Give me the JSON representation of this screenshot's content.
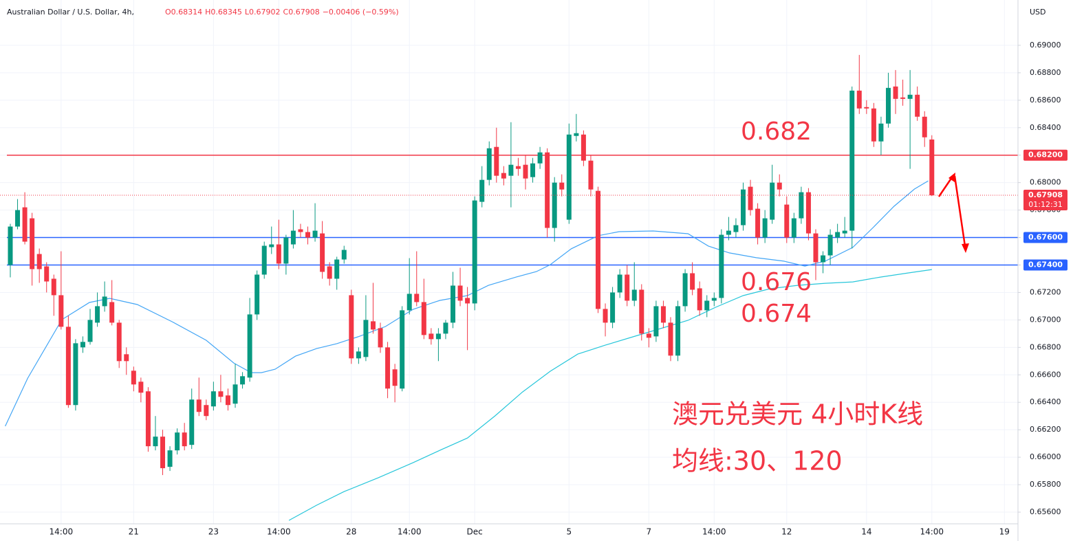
{
  "chart_data": {
    "type": "candlestick",
    "title": "Australian Dollar / U.S. Dollar, 4h,",
    "ohlc": [
      "O0.68314",
      "H0.68345",
      "L0.67902",
      "C0.67908",
      "−0.00406 (−0.59%)"
    ],
    "currency": "USD",
    "up_color": "#089981",
    "down_color": "#f23645",
    "grid": true,
    "candles": [
      [
        0.674,
        0.677,
        0.6731,
        0.6768
      ],
      [
        0.6768,
        0.6788,
        0.6766,
        0.678
      ],
      [
        0.6782,
        0.6793,
        0.6755,
        0.6757
      ],
      [
        0.6774,
        0.6778,
        0.6725,
        0.6737
      ],
      [
        0.6748,
        0.6752,
        0.6727,
        0.6737
      ],
      [
        0.6739,
        0.6742,
        0.672,
        0.6728
      ],
      [
        0.673,
        0.6733,
        0.6703,
        0.6718
      ],
      [
        0.6718,
        0.675,
        0.6693,
        0.6695
      ],
      [
        0.6695,
        0.6703,
        0.6636,
        0.6638
      ],
      [
        0.6638,
        0.6686,
        0.6634,
        0.6683
      ],
      [
        0.668,
        0.6688,
        0.6676,
        0.6684
      ],
      [
        0.6684,
        0.6708,
        0.6682,
        0.67
      ],
      [
        0.6698,
        0.672,
        0.6695,
        0.671
      ],
      [
        0.671,
        0.6728,
        0.6706,
        0.6717
      ],
      [
        0.6713,
        0.6729,
        0.6696,
        0.6698
      ],
      [
        0.6698,
        0.67,
        0.6665,
        0.667
      ],
      [
        0.6675,
        0.668,
        0.666,
        0.667
      ],
      [
        0.6663,
        0.6666,
        0.6648,
        0.6653
      ],
      [
        0.6655,
        0.6658,
        0.664,
        0.6647
      ],
      [
        0.6648,
        0.6651,
        0.6604,
        0.6608
      ],
      [
        0.6608,
        0.663,
        0.6605,
        0.6615
      ],
      [
        0.6615,
        0.662,
        0.6587,
        0.6592
      ],
      [
        0.6593,
        0.6608,
        0.659,
        0.6605
      ],
      [
        0.6605,
        0.6621,
        0.6602,
        0.6618
      ],
      [
        0.6618,
        0.6625,
        0.6605,
        0.6608
      ],
      [
        0.6609,
        0.665,
        0.6606,
        0.6642
      ],
      [
        0.6642,
        0.6658,
        0.663,
        0.6633
      ],
      [
        0.6638,
        0.6642,
        0.6627,
        0.663
      ],
      [
        0.6637,
        0.6655,
        0.6634,
        0.6648
      ],
      [
        0.6648,
        0.666,
        0.664,
        0.6644
      ],
      [
        0.6645,
        0.665,
        0.6634,
        0.6638
      ],
      [
        0.6639,
        0.6668,
        0.6636,
        0.6653
      ],
      [
        0.6653,
        0.6662,
        0.665,
        0.6659
      ],
      [
        0.6658,
        0.6716,
        0.6655,
        0.6704
      ],
      [
        0.6704,
        0.6736,
        0.67,
        0.6733
      ],
      [
        0.6733,
        0.6757,
        0.673,
        0.6754
      ],
      [
        0.6753,
        0.6768,
        0.6748,
        0.6755
      ],
      [
        0.6755,
        0.6773,
        0.6737,
        0.6741
      ],
      [
        0.6741,
        0.6762,
        0.6733,
        0.676
      ],
      [
        0.6755,
        0.678,
        0.6752,
        0.6765
      ],
      [
        0.6766,
        0.677,
        0.676,
        0.6764
      ],
      [
        0.6764,
        0.6768,
        0.6755,
        0.676
      ],
      [
        0.676,
        0.6785,
        0.6757,
        0.6765
      ],
      [
        0.6763,
        0.6772,
        0.673,
        0.6735
      ],
      [
        0.6739,
        0.6742,
        0.6725,
        0.673
      ],
      [
        0.673,
        0.6746,
        0.6722,
        0.6744
      ],
      [
        0.6744,
        0.6754,
        0.6741,
        0.6751
      ],
      [
        0.6718,
        0.6722,
        0.6668,
        0.6672
      ],
      [
        0.6672,
        0.668,
        0.6668,
        0.6677
      ],
      [
        0.6673,
        0.6718,
        0.667,
        0.67
      ],
      [
        0.6699,
        0.6727,
        0.669,
        0.6693
      ],
      [
        0.6694,
        0.6698,
        0.6676,
        0.668
      ],
      [
        0.668,
        0.6684,
        0.6643,
        0.665
      ],
      [
        0.6664,
        0.6668,
        0.664,
        0.6652
      ],
      [
        0.665,
        0.671,
        0.6648,
        0.6707
      ],
      [
        0.6707,
        0.6745,
        0.6704,
        0.6719
      ],
      [
        0.6719,
        0.675,
        0.671,
        0.6713
      ],
      [
        0.6713,
        0.673,
        0.6686,
        0.6689
      ],
      [
        0.669,
        0.6694,
        0.6682,
        0.6686
      ],
      [
        0.6686,
        0.6694,
        0.667,
        0.669
      ],
      [
        0.669,
        0.67,
        0.6686,
        0.6698
      ],
      [
        0.6698,
        0.6735,
        0.6694,
        0.6725
      ],
      [
        0.6725,
        0.6738,
        0.671,
        0.6714
      ],
      [
        0.6716,
        0.6724,
        0.6678,
        0.6712
      ],
      [
        0.6712,
        0.679,
        0.6707,
        0.6787
      ],
      [
        0.6786,
        0.6812,
        0.6782,
        0.6802
      ],
      [
        0.6802,
        0.683,
        0.6798,
        0.6825
      ],
      [
        0.6826,
        0.684,
        0.68,
        0.6805
      ],
      [
        0.6807,
        0.6812,
        0.6798,
        0.6803
      ],
      [
        0.6805,
        0.6844,
        0.6782,
        0.6813
      ],
      [
        0.6812,
        0.6818,
        0.6805,
        0.681
      ],
      [
        0.6813,
        0.682,
        0.6795,
        0.6803
      ],
      [
        0.6804,
        0.6818,
        0.68,
        0.6814
      ],
      [
        0.6814,
        0.6826,
        0.681,
        0.6822
      ],
      [
        0.6822,
        0.6825,
        0.676,
        0.6767
      ],
      [
        0.6767,
        0.6804,
        0.6757,
        0.68
      ],
      [
        0.68,
        0.6806,
        0.679,
        0.6795
      ],
      [
        0.6773,
        0.6843,
        0.677,
        0.6835
      ],
      [
        0.6834,
        0.685,
        0.683,
        0.6836
      ],
      [
        0.6835,
        0.6838,
        0.6812,
        0.6816
      ],
      [
        0.6816,
        0.682,
        0.679,
        0.6795
      ],
      [
        0.6794,
        0.6797,
        0.6705,
        0.6708
      ],
      [
        0.6708,
        0.6712,
        0.6688,
        0.6698
      ],
      [
        0.6698,
        0.6724,
        0.6694,
        0.672
      ],
      [
        0.672,
        0.6737,
        0.6716,
        0.6733
      ],
      [
        0.6733,
        0.674,
        0.671,
        0.6714
      ],
      [
        0.6714,
        0.6742,
        0.671,
        0.6722
      ],
      [
        0.6722,
        0.6726,
        0.6685,
        0.669
      ],
      [
        0.669,
        0.6694,
        0.668,
        0.6687
      ],
      [
        0.6688,
        0.6714,
        0.6684,
        0.671
      ],
      [
        0.671,
        0.6714,
        0.6694,
        0.6698
      ],
      [
        0.6698,
        0.6702,
        0.667,
        0.6674
      ],
      [
        0.6674,
        0.6714,
        0.667,
        0.671
      ],
      [
        0.671,
        0.6737,
        0.6706,
        0.6734
      ],
      [
        0.6734,
        0.6742,
        0.6718,
        0.6722
      ],
      [
        0.6723,
        0.6728,
        0.6703,
        0.6707
      ],
      [
        0.6707,
        0.6718,
        0.6702,
        0.6714
      ],
      [
        0.6714,
        0.672,
        0.671,
        0.6716
      ],
      [
        0.6716,
        0.6766,
        0.6712,
        0.6762
      ],
      [
        0.6762,
        0.6775,
        0.6758,
        0.6765
      ],
      [
        0.6764,
        0.6774,
        0.676,
        0.6769
      ],
      [
        0.6769,
        0.68,
        0.6765,
        0.6795
      ],
      [
        0.6797,
        0.6802,
        0.6776,
        0.678
      ],
      [
        0.6781,
        0.6785,
        0.6755,
        0.676
      ],
      [
        0.676,
        0.678,
        0.6756,
        0.6774
      ],
      [
        0.6773,
        0.6813,
        0.677,
        0.68
      ],
      [
        0.68,
        0.6806,
        0.679,
        0.6795
      ],
      [
        0.6784,
        0.679,
        0.6756,
        0.676
      ],
      [
        0.676,
        0.6778,
        0.6756,
        0.6774
      ],
      [
        0.6774,
        0.6797,
        0.677,
        0.6793
      ],
      [
        0.6793,
        0.6796,
        0.6758,
        0.6763
      ],
      [
        0.6763,
        0.6766,
        0.6729,
        0.6742
      ],
      [
        0.6742,
        0.675,
        0.6734,
        0.6747
      ],
      [
        0.6747,
        0.6766,
        0.674,
        0.6762
      ],
      [
        0.676,
        0.677,
        0.6756,
        0.6764
      ],
      [
        0.6763,
        0.6775,
        0.676,
        0.6765
      ],
      [
        0.6765,
        0.687,
        0.6752,
        0.6867
      ],
      [
        0.6867,
        0.6893,
        0.685,
        0.6854
      ],
      [
        0.6855,
        0.686,
        0.685,
        0.6854
      ],
      [
        0.6854,
        0.6858,
        0.6826,
        0.683
      ],
      [
        0.683,
        0.6848,
        0.682,
        0.6843
      ],
      [
        0.6843,
        0.688,
        0.684,
        0.6869
      ],
      [
        0.687,
        0.6882,
        0.685,
        0.6861
      ],
      [
        0.6862,
        0.6875,
        0.6856,
        0.6861
      ],
      [
        0.6861,
        0.6882,
        0.681,
        0.6864
      ],
      [
        0.6864,
        0.687,
        0.6845,
        0.6848
      ],
      [
        0.6848,
        0.6852,
        0.6826,
        0.6833
      ],
      [
        0.68314,
        0.68345,
        0.67902,
        0.67908
      ]
    ],
    "lines": [
      {
        "color": "#42a5f5",
        "x": [
          -0.7,
          2.4,
          7.1,
          10.9,
          13.7,
          17.5,
          22.3,
          27.0,
          30.8,
          33.2,
          34.6,
          36.5,
          39.3,
          42.2,
          45.0,
          47.9,
          51.7,
          55.5,
          59.2,
          63.0,
          65.9,
          69.7,
          72.5,
          74.4,
          77.3,
          81.0,
          83.9,
          88.6,
          93.4,
          96.2,
          99.1,
          102.8,
          106.6,
          109.5,
          112.3,
          116.1,
          119.0,
          121.8,
          124.6,
          126.5
        ],
        "values": [
          0.66226,
          0.66576,
          0.67002,
          0.67127,
          0.67157,
          0.67112,
          0.66987,
          0.66852,
          0.66686,
          0.66616,
          0.66616,
          0.66641,
          0.66736,
          0.66791,
          0.66827,
          0.66877,
          0.66952,
          0.67077,
          0.67142,
          0.67177,
          0.67252,
          0.67312,
          0.67352,
          0.67402,
          0.67518,
          0.67613,
          0.67643,
          0.67648,
          0.67628,
          0.67538,
          0.67488,
          0.67453,
          0.67428,
          0.67392,
          0.67428,
          0.67528,
          0.67678,
          0.67828,
          0.67953,
          0.68013
        ]
      },
      {
        "color": "#26c6da",
        "x": [
          38.4,
          42.2,
          46.0,
          50.7,
          55.5,
          59.2,
          63.0,
          66.8,
          70.6,
          74.4,
          78.2,
          82.0,
          85.8,
          89.6,
          93.4,
          97.2,
          101.0,
          104.7,
          108.5,
          112.3,
          116.1,
          119.9,
          123.7,
          127.0
        ],
        "values": [
          0.6554,
          0.6565,
          0.6575,
          0.6585,
          0.6596,
          0.6605,
          0.6614,
          0.66301,
          0.66476,
          0.66626,
          0.66751,
          0.66816,
          0.66877,
          0.66937,
          0.66997,
          0.67092,
          0.67177,
          0.67227,
          0.67252,
          0.67267,
          0.67277,
          0.67312,
          0.67342,
          0.67367
        ]
      }
    ],
    "levels": [
      {
        "value": 0.682,
        "label": "0.68200",
        "color": "#f23645"
      },
      {
        "value": 0.676,
        "label": "0.67600",
        "color": "#2962ff"
      },
      {
        "value": 0.674,
        "label": "0.67400",
        "color": "#2962ff"
      }
    ],
    "last_price": {
      "value": 0.67908,
      "label": "0.67908",
      "countdown": "01:12:31",
      "color": "#f23645"
    },
    "annotations": [
      {
        "value": 0.682,
        "text": "0.682"
      },
      {
        "value": 0.676,
        "text": "0.676"
      },
      {
        "value": 0.674,
        "text": "0.674"
      }
    ],
    "caption": [
      "澳元兑美元 4小时K线",
      "均线:30、120"
    ],
    "ylim": [
      0.65515,
      0.6933
    ],
    "yticks": [
      {
        "value": 0.656,
        "label": "0.65600"
      },
      {
        "value": 0.658,
        "label": "0.65800"
      },
      {
        "value": 0.66,
        "label": "0.66000"
      },
      {
        "value": 0.662,
        "label": "0.66200"
      },
      {
        "value": 0.664,
        "label": "0.66400"
      },
      {
        "value": 0.666,
        "label": "0.66600"
      },
      {
        "value": 0.668,
        "label": "0.66800"
      },
      {
        "value": 0.67,
        "label": "0.67000"
      },
      {
        "value": 0.672,
        "label": "0.67200"
      },
      {
        "value": 0.674,
        "label": "0.67400"
      },
      {
        "value": 0.676,
        "label": "0.67600"
      },
      {
        "value": 0.678,
        "label": "0.67800"
      },
      {
        "value": 0.68,
        "label": "0.68000"
      },
      {
        "value": 0.682,
        "label": "0.68200"
      },
      {
        "value": 0.684,
        "label": "0.68400"
      },
      {
        "value": 0.686,
        "label": "0.68600"
      },
      {
        "value": 0.688,
        "label": "0.68800"
      },
      {
        "value": 0.69,
        "label": "0.69000"
      }
    ],
    "xlim": [
      -1.42,
      138.87
    ],
    "xticks": [
      {
        "value": 7,
        "label": "14:00"
      },
      {
        "value": 17,
        "label": "21"
      },
      {
        "value": 28,
        "label": "23"
      },
      {
        "value": 37,
        "label": "14:00"
      },
      {
        "value": 47,
        "label": "28"
      },
      {
        "value": 55,
        "label": "14:00"
      },
      {
        "value": 64,
        "label": "Dec"
      },
      {
        "value": 77,
        "label": "5"
      },
      {
        "value": 88,
        "label": "7"
      },
      {
        "value": 97,
        "label": "14:00"
      },
      {
        "value": 107,
        "label": "12"
      },
      {
        "value": 118,
        "label": "14"
      },
      {
        "value": 127,
        "label": "14:00"
      },
      {
        "value": 137,
        "label": "19"
      }
    ]
  }
}
